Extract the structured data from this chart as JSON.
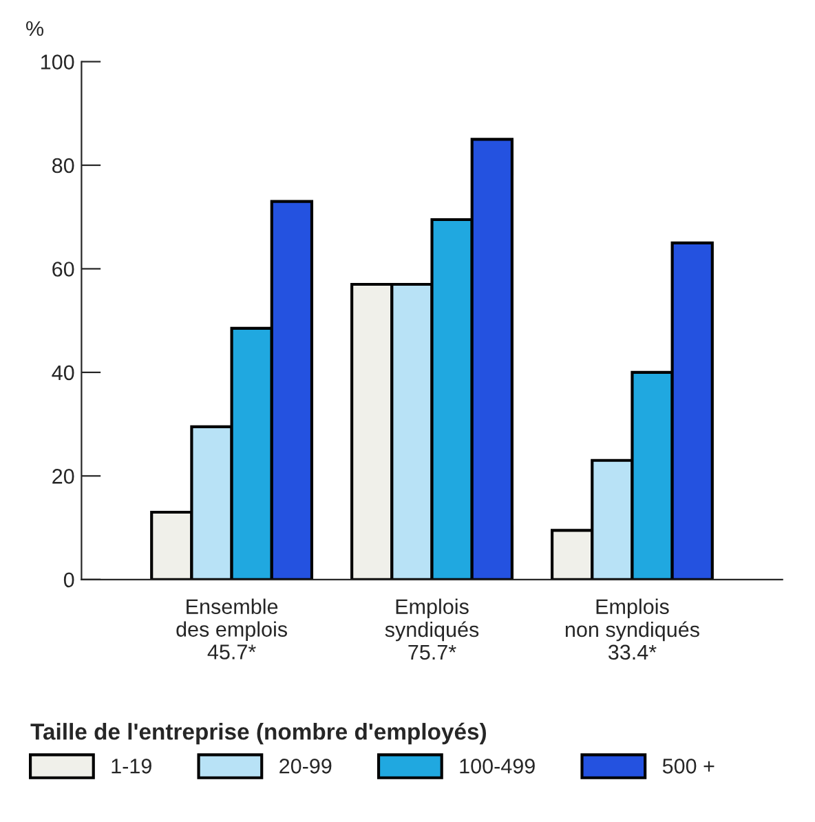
{
  "chart_data": {
    "type": "bar",
    "ylabel": "%",
    "legend_title": "Taille de l'entreprise (nombre d'employés)",
    "categories": [
      "Ensemble\ndes emplois\n45.7*",
      "Emplois\nsyndiqués\n75.7*",
      "Emplois\nnon syndiqués\n33.4*"
    ],
    "series": [
      {
        "name": "1-19",
        "color": "#f0f0ea",
        "values": [
          13,
          57,
          9.5
        ]
      },
      {
        "name": "20-99",
        "color": "#b8e2f6",
        "values": [
          29.5,
          57,
          23
        ]
      },
      {
        "name": "100-499",
        "color": "#20a8e0",
        "values": [
          48.5,
          69.5,
          40
        ]
      },
      {
        "name": "500 +",
        "color": "#2452e0",
        "values": [
          73,
          85,
          65
        ]
      }
    ],
    "ylim": [
      0,
      100
    ],
    "yticks": [
      0,
      20,
      40,
      60,
      80,
      100
    ],
    "grid": false,
    "legend": "bottom"
  }
}
